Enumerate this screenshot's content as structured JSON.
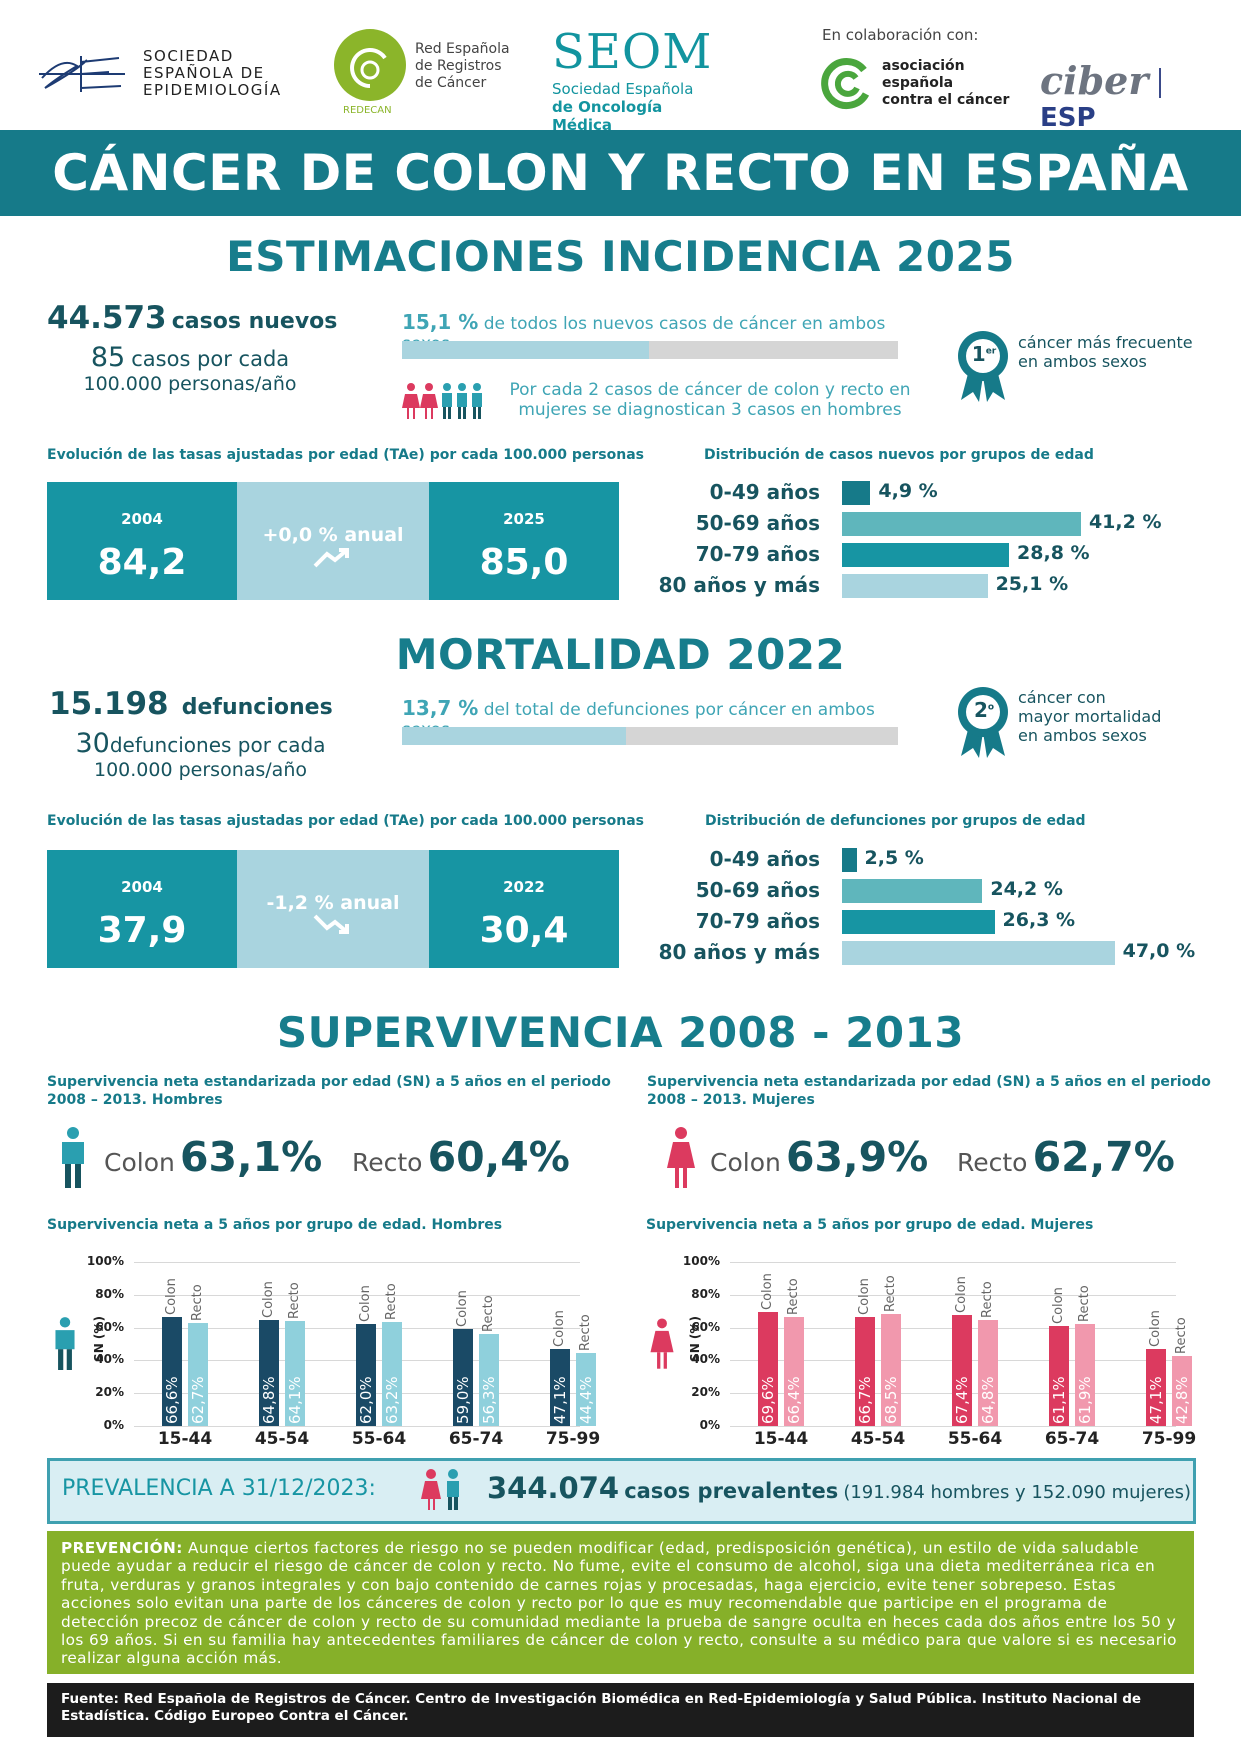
{
  "logos": {
    "see": {
      "line1": "SOCIEDAD",
      "line2": "ESPAÑOLA DE",
      "line3": "EPIDEMIOLOGÍA"
    },
    "redecan": {
      "line1": "Red Española",
      "line2": "de Registros",
      "line3": "de Cáncer",
      "tag": "REDECAN"
    },
    "seom": {
      "abbr": "SEOM",
      "line1": "Sociedad Española",
      "line2": "de Oncología Médica"
    },
    "collab": {
      "label": "En colaboración con:",
      "aecc1": "asociación",
      "aecc2": "española",
      "aecc3": "contra el cáncer",
      "ciber": "ciber",
      "esp": "ESP"
    }
  },
  "title": "CÁNCER DE COLON Y RECTO EN ESPAÑA",
  "incidence": {
    "title": "ESTIMACIONES INCIDENCIA 2025",
    "cases_num": "44.573",
    "cases_lbl": "casos nuevos",
    "rate_num": "85",
    "rate_lbl": "casos por cada",
    "rate_lbl2": "100.000 personas/año",
    "pct_num": "15,1 %",
    "pct_txt": "de todos los nuevos casos de cáncer en ambos sexos",
    "pct_value": 15.1,
    "ratio_txt1": "Por cada 2 casos de cáncer de colon y recto en",
    "ratio_txt2": "mujeres se diagnostican 3 casos en hombres",
    "rank_badge": "1",
    "rank_sup": "er",
    "rank_txt1": "cáncer más frecuente",
    "rank_txt2": "en ambos sexos",
    "tae_head": "Evolución de las tasas ajustadas por edad (TAe) por cada 100.000 personas",
    "tae": {
      "year1": "2004",
      "val1": "84,2",
      "trend": "+0,0 % anual",
      "year2": "2025",
      "val2": "85,0"
    },
    "dist_head": "Distribución de casos nuevos por grupos de edad",
    "dist": [
      {
        "label": "0-49 años",
        "value_txt": "4,9 %",
        "value": 4.9,
        "color": "#167a89"
      },
      {
        "label": "50-69 años",
        "value_txt": "41,2 %",
        "value": 41.2,
        "color": "#5fb6bc"
      },
      {
        "label": "70-79 años",
        "value_txt": "28,8 %",
        "value": 28.8,
        "color": "#1795a3"
      },
      {
        "label": "80 años y más",
        "value_txt": "25,1 %",
        "value": 25.1,
        "color": "#a9d4df"
      }
    ]
  },
  "mortality": {
    "title": "MORTALIDAD 2022",
    "deaths_num": "15.198",
    "deaths_lbl": "defunciones",
    "rate_num": "30",
    "rate_lbl": "defunciones por cada",
    "rate_lbl2": "100.000 personas/año",
    "pct_num": "13,7 %",
    "pct_txt": "del total de defunciones por cáncer en ambos sexos",
    "pct_value": 13.7,
    "rank_badge": "2",
    "rank_sup": "o",
    "rank_txt1": "cáncer con",
    "rank_txt2": "mayor mortalidad",
    "rank_txt3": "en ambos sexos",
    "tae_head": "Evolución de las tasas ajustadas por edad (TAe) por cada 100.000 personas",
    "tae": {
      "year1": "2004",
      "val1": "37,9",
      "trend": "-1,2 % anual",
      "year2": "2022",
      "val2": "30,4"
    },
    "dist_head": "Distribución de defunciones por grupos de edad",
    "dist": [
      {
        "label": "0-49 años",
        "value_txt": "2,5 %",
        "value": 2.5,
        "color": "#167a89"
      },
      {
        "label": "50-69 años",
        "value_txt": "24,2 %",
        "value": 24.2,
        "color": "#5fb6bc"
      },
      {
        "label": "70-79 años",
        "value_txt": "26,3 %",
        "value": 26.3,
        "color": "#1795a3"
      },
      {
        "label": "80 años y más",
        "value_txt": "47,0 %",
        "value": 47.0,
        "color": "#a9d4df"
      }
    ]
  },
  "survival": {
    "title": "SUPERVIVENCIA 2008 - 2013",
    "men_head1": "Supervivencia neta estandarizada por edad (SN) a 5 años en el periodo",
    "men_head2": "2008 – 2013.  Hombres",
    "women_head1": "Supervivencia neta estandarizada por edad (SN) a 5 años en el periodo",
    "women_head2": "2008 – 2013.  Mujeres",
    "colon_word": "Colon",
    "recto_word": "Recto",
    "men_colon": "63,1%",
    "men_recto": "60,4%",
    "women_colon": "63,9%",
    "women_recto": "62,7%",
    "men_chart_head": "Supervivencia neta a 5 años por grupo de edad. Hombres",
    "women_chart_head": "Supervivencia neta a 5 años por grupo de edad. Mujeres"
  },
  "chart_data": [
    {
      "type": "bar",
      "title": "Supervivencia neta a 5 años por grupo de edad. Hombres",
      "ylabel": "SN (%)",
      "ylim": [
        0,
        100
      ],
      "yticks": [
        "0%",
        "20%",
        "40%",
        "60%",
        "80%",
        "100%"
      ],
      "categories": [
        "15-44",
        "45-54",
        "55-64",
        "65-74",
        "75-99"
      ],
      "series": [
        {
          "name": "Colon",
          "values": [
            66.6,
            64.8,
            62.0,
            59.0,
            47.1
          ],
          "labels": [
            "66,6%",
            "64,8%",
            "62,0%",
            "59,0%",
            "47,1%"
          ],
          "color": "#1a4a66"
        },
        {
          "name": "Recto",
          "values": [
            62.7,
            64.1,
            63.2,
            56.3,
            44.4
          ],
          "labels": [
            "62,7%",
            "64,1%",
            "63,2%",
            "56,3%",
            "44,4%"
          ],
          "color": "#8fd0dc"
        }
      ]
    },
    {
      "type": "bar",
      "title": "Supervivencia neta a 5 años por grupo de edad. Mujeres",
      "ylabel": "SN (%)",
      "ylim": [
        0,
        100
      ],
      "yticks": [
        "0%",
        "20%",
        "40%",
        "60%",
        "80%",
        "100%"
      ],
      "categories": [
        "15-44",
        "45-54",
        "55-64",
        "65-74",
        "75-99"
      ],
      "series": [
        {
          "name": "Colon",
          "values": [
            69.6,
            66.7,
            67.4,
            61.1,
            47.1
          ],
          "labels": [
            "69,6%",
            "66,7%",
            "67,4%",
            "61,1%",
            "47,1%"
          ],
          "color": "#dc3a5f"
        },
        {
          "name": "Recto",
          "values": [
            66.4,
            68.5,
            64.8,
            61.9,
            42.8
          ],
          "labels": [
            "66,4%",
            "68,5%",
            "64,8%",
            "61,9%",
            "42,8%"
          ],
          "color": "#f198ad"
        }
      ]
    }
  ],
  "prevalence": {
    "label": "PREVALENCIA A 31/12/2023:",
    "num": "344.074",
    "lbl": "casos prevalentes",
    "detail": "(191.984 hombres y 152.090 mujeres)"
  },
  "prevention": {
    "head": "PREVENCIÓN:",
    "text": "Aunque ciertos factores de riesgo no se pueden modificar (edad, predisposición genética), un estilo de vida saludable puede ayudar a reducir el riesgo de cáncer de colon y recto. No fume, evite el consumo de alcohol, siga una dieta mediterránea rica en fruta, verduras y granos integrales y con bajo contenido de carnes rojas y procesadas, haga ejercicio, evite tener sobrepeso. Estas acciones solo evitan una parte de los cánceres de colon y recto por lo que es muy recomendable que participe en el programa de detección precoz de cáncer de colon y recto de su comunidad mediante la prueba de sangre oculta en heces cada dos años entre los 50 y los 69 años. Si en su familia hay antecedentes familiares de cáncer de colon y recto, consulte a su médico para que valore si es necesario realizar alguna acción más."
  },
  "source": "Fuente: Red Española de Registros de Cáncer. Centro de Investigación Biomédica en Red-Epidemiología y Salud Pública. Instituto Nacional de Estadística. Código Europeo Contra el Cáncer."
}
